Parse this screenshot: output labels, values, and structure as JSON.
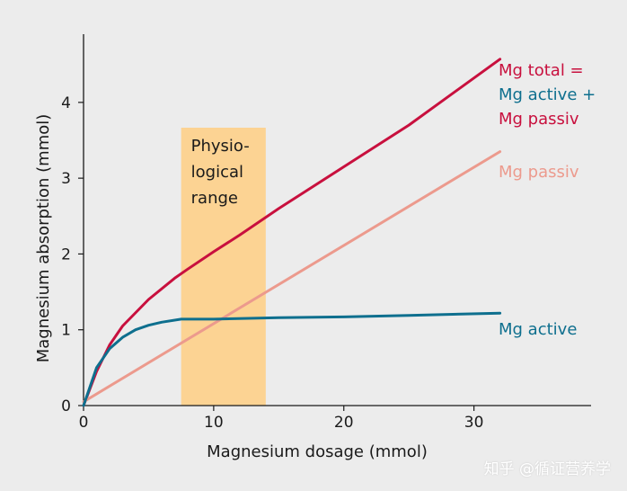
{
  "chart_data": {
    "type": "line",
    "xlabel": "Magnesium dosage (mmol)",
    "ylabel": "Magnesium absorption (mmol)",
    "xlim": [
      0,
      39
    ],
    "ylim": [
      0,
      4.9
    ],
    "x_ticks": [
      0,
      10,
      20,
      30
    ],
    "y_ticks": [
      0,
      1,
      2,
      3,
      4
    ],
    "grid": false,
    "shaded_range": {
      "x": [
        7.5,
        14
      ],
      "label_lines": [
        "Physio-",
        "logical",
        "range"
      ],
      "color": "#fcd393"
    },
    "series": [
      {
        "name": "Mg total",
        "color": "#c8103e",
        "x": [
          0,
          1,
          2,
          3,
          5,
          7,
          8,
          10,
          12,
          15,
          20,
          25,
          32
        ],
        "y": [
          0,
          0.45,
          0.8,
          1.05,
          1.4,
          1.68,
          1.8,
          2.03,
          2.25,
          2.6,
          3.15,
          3.7,
          4.57
        ]
      },
      {
        "name": "Mg passiv",
        "color": "#ec9a8d",
        "x": [
          0,
          32
        ],
        "y": [
          0.05,
          3.35
        ]
      },
      {
        "name": "Mg active",
        "color": "#0e6f8e",
        "x": [
          0,
          1,
          2,
          3,
          4,
          5,
          6,
          7.5,
          10,
          15,
          20,
          25,
          32
        ],
        "y": [
          0,
          0.5,
          0.75,
          0.9,
          1.0,
          1.06,
          1.1,
          1.14,
          1.14,
          1.16,
          1.17,
          1.19,
          1.22
        ]
      }
    ],
    "annotations": [
      {
        "lines": [
          {
            "text": "Mg total =",
            "color": "#c8103e"
          },
          {
            "text": "Mg active +",
            "color": "#0e6f8e"
          },
          {
            "text": "Mg passiv",
            "color": "#c8103e"
          }
        ]
      },
      {
        "lines": [
          {
            "text": "Mg passiv",
            "color": "#ec9a8d"
          }
        ]
      },
      {
        "lines": [
          {
            "text": "Mg active",
            "color": "#0e6f8e"
          }
        ]
      }
    ]
  },
  "watermark": "知乎 @循证营养学"
}
